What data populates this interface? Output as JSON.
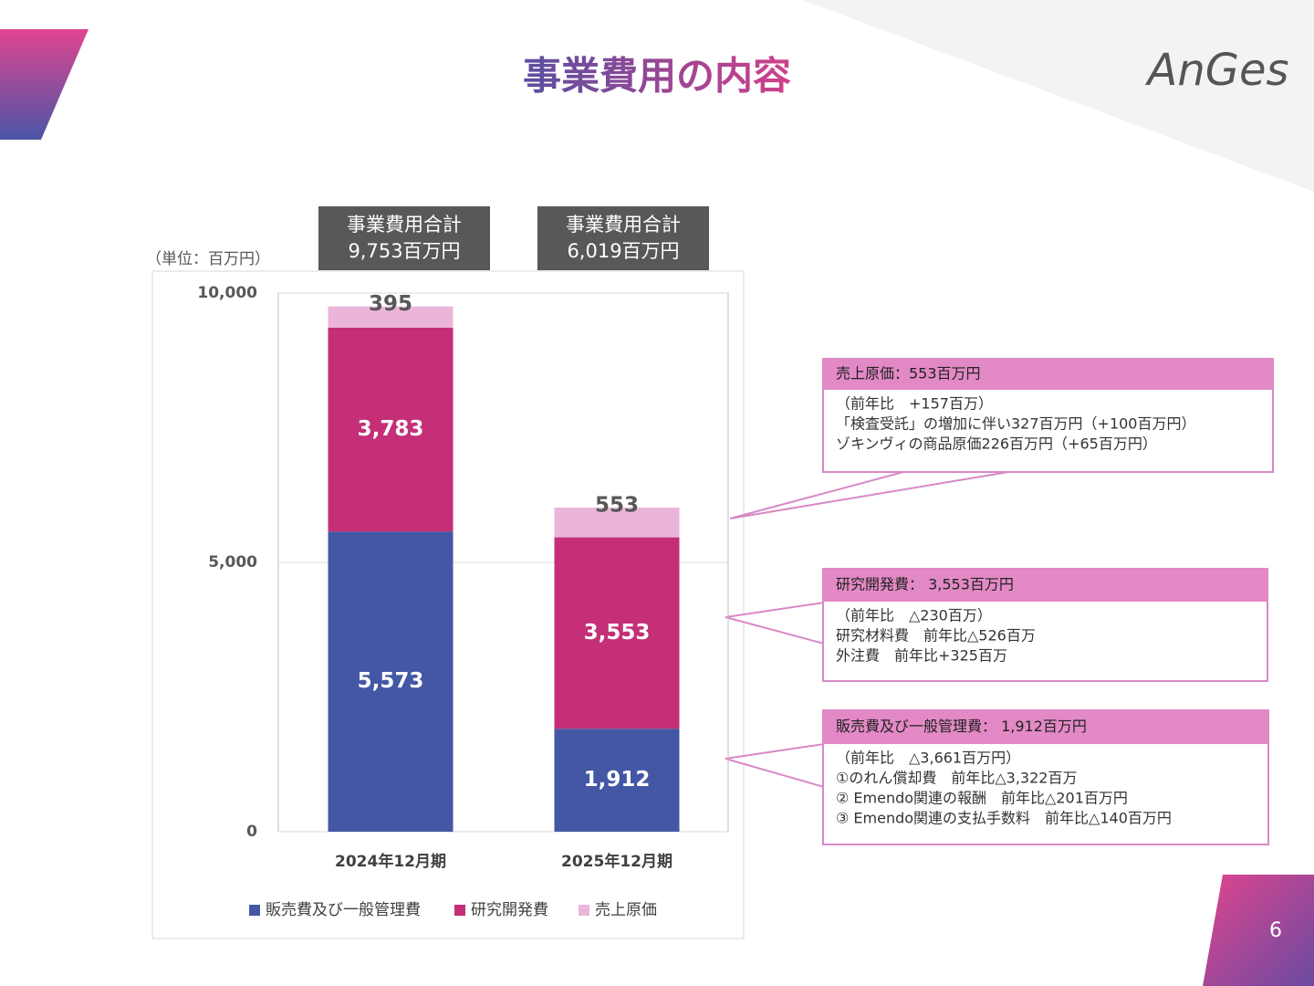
{
  "title": "事業費用の内容",
  "logo": "AnGes",
  "page_number": "6",
  "chart_data": {
    "type": "bar",
    "stacked": true,
    "unit_label": "（単位：百万円）",
    "categories": [
      "2024年12月期",
      "2025年12月期"
    ],
    "series": [
      {
        "name": "販売費及び一般管理費",
        "color": "#4457a5",
        "values": [
          5573,
          1912
        ],
        "value_labels": [
          "5,573",
          "1,912"
        ]
      },
      {
        "name": "研究開発費",
        "color": "#c42f77",
        "values": [
          3783,
          3553
        ],
        "value_labels": [
          "3,783",
          "3,553"
        ]
      },
      {
        "name": "売上原価",
        "color": "#ebb5d9",
        "values": [
          395,
          553
        ],
        "value_labels": [
          "395",
          "553"
        ]
      }
    ],
    "ylim": [
      0,
      10000
    ],
    "yticks": [
      0,
      {
        "value": 5000,
        "label": "5,000"
      },
      {
        "value": 10000,
        "label": "10,000"
      }
    ],
    "grid": true,
    "legend": "bottom",
    "annotations": [
      {
        "title": "事業費用合計",
        "text": "9,753百万円"
      },
      {
        "title": "事業費用合計",
        "text": "6,019百万円"
      }
    ]
  },
  "callouts": [
    {
      "header": "売上原価：553百万円",
      "lines": [
        "（前年比　+157百万）",
        "「検査受託」の増加に伴い327百万円（+100百万円）",
        "ゾキンヴィの商品原価226百万円（+65百万円）"
      ]
    },
    {
      "header": "研究開発費：  3,553百万円",
      "lines": [
        "（前年比　△230百万）",
        "研究材料費　前年比△526百万",
        "外注費　前年比+325百万"
      ]
    },
    {
      "header": "販売費及び一般管理費：  1,912百万円",
      "lines": [
        "（前年比　△3,661百万円）",
        "①のれん償却費　前年比△3,322百万",
        "② Emendo関連の報酬　前年比△201百万円",
        "③ Emendo関連の支払手数料　前年比△140百万円"
      ]
    }
  ]
}
